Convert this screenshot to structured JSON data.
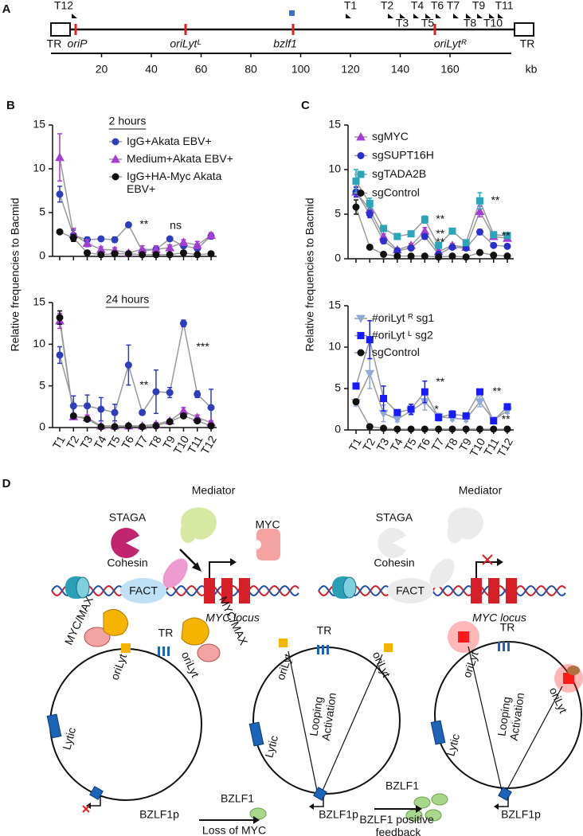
{
  "genome": {
    "panel": "A",
    "targets": [
      "T12",
      "T1",
      "T2",
      "T3",
      "T4",
      "T5",
      "T6",
      "T7",
      "T8",
      "T9",
      "T10",
      "T11"
    ],
    "features": [
      "TR",
      "oriP",
      "oriLytᴸ",
      "bzlf1",
      "oriLytᴿ",
      "TR"
    ],
    "scale_ticks": [
      20,
      40,
      60,
      80,
      100,
      120,
      140,
      160
    ],
    "unit": "kb"
  },
  "chart_data": [
    {
      "type": "line",
      "panel": "B",
      "title": "2 hours",
      "ylabel": "Relative frequencies to Bacmid",
      "categories": [
        null,
        null,
        null,
        null,
        null,
        null,
        null,
        null,
        null,
        null,
        null,
        null
      ],
      "ylim": [
        0,
        15
      ],
      "yticks": [
        0,
        5,
        10,
        15
      ],
      "line_color": "#9a9a9a",
      "annotations": [
        "**",
        "ns"
      ],
      "series": [
        {
          "name": "IgG+Akata EBV+",
          "color": "#2e3dbd",
          "marker": "circle",
          "values": [
            7.1,
            2.4,
            1.9,
            2.0,
            1.9,
            3.6,
            0.6,
            0.8,
            2.0,
            1.2,
            0.9,
            2.3
          ],
          "errors": [
            0.9,
            0.6,
            0.3,
            0.2,
            0.3,
            0.2,
            0.2,
            0.4,
            0.2,
            0.2,
            0.5,
            0.3
          ]
        },
        {
          "name": "Medium+Akata EBV+",
          "color": "#a43cd6",
          "marker": "triangle",
          "values": [
            11.3,
            2.5,
            1.5,
            0.8,
            0.7,
            0.4,
            0.8,
            0.8,
            1.0,
            1.6,
            1.3,
            2.4
          ],
          "errors": [
            2.7,
            0.7,
            0.4,
            0.3,
            0.3,
            0.2,
            0.4,
            0.4,
            0.3,
            0.3,
            0.4,
            0.3
          ]
        },
        {
          "name": "IgG+HA-Myc Akata EBV+",
          "color": "#111111",
          "marker": "circle",
          "values": [
            2.8,
            2.1,
            0.4,
            0.2,
            0.3,
            0.3,
            0.2,
            0.2,
            0.2,
            0.4,
            0.2,
            0.3
          ],
          "errors": [
            0.2,
            0.4,
            0.1,
            0.1,
            0.1,
            0.1,
            0.1,
            0.1,
            0.1,
            0.1,
            0.1,
            0.1
          ]
        }
      ]
    },
    {
      "type": "line",
      "title": "24 hours",
      "categories": [
        "T1",
        "T2",
        "T3",
        "T4",
        "T5",
        "T6",
        "T7",
        "T8",
        "T9",
        "T10",
        "T11",
        "T12"
      ],
      "ylim": [
        0,
        15
      ],
      "yticks": [
        0,
        5,
        10,
        15
      ],
      "line_color": "#9a9a9a",
      "annotations": [
        "**",
        "***"
      ],
      "series": [
        {
          "color": "#2e3dbd",
          "marker": "circle",
          "values": [
            8.7,
            2.6,
            2.6,
            2.2,
            1.8,
            7.5,
            1.8,
            4.3,
            4.2,
            12.5,
            4.0,
            2.4
          ],
          "errors": [
            1.0,
            1.2,
            1.3,
            1.4,
            1.0,
            2.4,
            0.1,
            2.6,
            0.6,
            0.4,
            0.4,
            2.2
          ]
        },
        {
          "color": "#a43cd6",
          "marker": "triangle",
          "values": [
            12.8,
            1.3,
            1.2,
            0.2,
            0.2,
            0.2,
            0.2,
            0.4,
            0.8,
            2.0,
            1.2,
            0.6
          ],
          "errors": [
            0.9,
            0.3,
            0.3,
            0.1,
            0.1,
            0.1,
            0.1,
            0.2,
            0.2,
            0.4,
            0.3,
            0.2
          ]
        },
        {
          "color": "#111111",
          "marker": "circle",
          "values": [
            13.2,
            1.4,
            1.0,
            0.1,
            0.1,
            0.2,
            0.1,
            0.2,
            0.7,
            1.4,
            0.8,
            0.2
          ],
          "errors": [
            0.8,
            0.2,
            0.2,
            0.1,
            0.1,
            0.1,
            0.1,
            0.1,
            0.1,
            0.2,
            0.2,
            0.1
          ]
        }
      ]
    },
    {
      "type": "line",
      "panel": "C",
      "ylabel": "Relative frequencies to Bacmid",
      "categories": [
        null,
        null,
        null,
        null,
        null,
        null,
        null,
        null,
        null,
        null,
        null,
        null
      ],
      "ylim": [
        0,
        15
      ],
      "yticks": [
        0,
        5,
        10,
        15
      ],
      "line_color": "#9a9a9a",
      "annotations": [
        "**",
        "**",
        "**",
        "**",
        "**"
      ],
      "series": [
        {
          "name": "sgMYC",
          "color": "#a43cd6",
          "marker": "triangle",
          "values": [
            7.5,
            5.5,
            2.5,
            1.0,
            1.5,
            3.1,
            0.8,
            1.5,
            1.3,
            5.3,
            2.5,
            2.3
          ],
          "errors": [
            0.6,
            0.5,
            0.3,
            0.2,
            0.2,
            0.4,
            0.2,
            0.2,
            0.2,
            0.6,
            0.3,
            0.2
          ]
        },
        {
          "name": "sgSUPT16H",
          "color": "#2b2fd0",
          "marker": "circle",
          "values": [
            7.5,
            5.0,
            2.0,
            0.9,
            1.2,
            2.5,
            0.5,
            1.3,
            1.2,
            3.0,
            1.5,
            1.4
          ],
          "errors": [
            0.5,
            0.4,
            0.3,
            0.2,
            0.2,
            0.3,
            0.2,
            0.2,
            0.2,
            0.3,
            0.2,
            0.2
          ]
        },
        {
          "name": "sgTADA2B",
          "color": "#2aa6b8",
          "marker": "square",
          "values": [
            8.7,
            6.2,
            3.4,
            2.5,
            2.8,
            4.4,
            1.5,
            3.1,
            1.8,
            6.5,
            2.7,
            2.6
          ],
          "errors": [
            1.3,
            0.6,
            0.3,
            0.2,
            0.2,
            0.4,
            0.2,
            0.2,
            0.2,
            0.9,
            0.2,
            0.2
          ]
        },
        {
          "name": "sgControl",
          "color": "#111111",
          "marker": "circle",
          "values": [
            5.8,
            1.3,
            0.5,
            0.3,
            0.3,
            0.3,
            0.2,
            0.3,
            0.2,
            0.7,
            0.4,
            0.3
          ],
          "errors": [
            0.8,
            0.1,
            0.1,
            0.1,
            0.1,
            0.1,
            0.1,
            0.1,
            0.1,
            0.1,
            0.1,
            0.1
          ]
        }
      ]
    },
    {
      "type": "line",
      "categories": [
        "T1",
        "T2",
        "T3",
        "T4",
        "T5",
        "T6",
        "T7",
        "T8",
        "T9",
        "T10",
        "T11",
        "T12"
      ],
      "ylim": [
        0,
        15
      ],
      "yticks": [
        0,
        5,
        10,
        15
      ],
      "line_color": "#9a9a9a",
      "annotations": [
        "**",
        "*",
        "**",
        "**"
      ],
      "series": [
        {
          "name": "#oriLyt ᴿ sg1",
          "color": "#8fa8d8",
          "marker": "triangle-down",
          "values": [
            3.3,
            6.8,
            2.0,
            1.3,
            2.3,
            3.4,
            1.6,
            1.4,
            1.3,
            3.4,
            1.2,
            2.3
          ],
          "errors": [
            0.4,
            1.8,
            1.0,
            0.3,
            0.5,
            1.0,
            0.4,
            0.3,
            0.3,
            0.6,
            0.2,
            0.3
          ]
        },
        {
          "name": "#oriLyt ᴸ sg2",
          "color": "#1a1aff",
          "marker": "square",
          "values": [
            5.3,
            10.9,
            3.8,
            2.1,
            2.5,
            4.6,
            1.5,
            1.9,
            1.7,
            4.6,
            1.1,
            2.8
          ],
          "errors": [
            0.2,
            2.3,
            1.5,
            0.3,
            0.6,
            1.3,
            0.4,
            0.4,
            0.3,
            0.3,
            0.2,
            0.2
          ]
        },
        {
          "name": "sgControl",
          "color": "#111111",
          "marker": "circle",
          "values": [
            3.4,
            0.4,
            0.2,
            0.1,
            0.1,
            0.1,
            0.1,
            0.1,
            0.1,
            0.1,
            0.1,
            0.1
          ],
          "errors": [
            0.3,
            0.1,
            0.1,
            0.1,
            0.1,
            0.1,
            0.1,
            0.1,
            0.1,
            0.1,
            0.1,
            0.1
          ]
        }
      ]
    }
  ],
  "model": {
    "panel": "D",
    "locus_on": {
      "mediator": "Mediator",
      "staga": "STAGA",
      "myc": "MYC",
      "cohesin": "Cohesin",
      "fact": "FACT",
      "locus": "MYC locus"
    },
    "locus_off": {
      "mediator": "Mediator",
      "staga": "STAGA",
      "cohesin": "Cohesin",
      "fact": "FACT",
      "locus": "MYC locus"
    },
    "episome_latent": {
      "myc_max_left": "MYC/MAX",
      "tr": "TR",
      "orilyt_left": "oriLyt",
      "myc_max_right": "MYC/MAX",
      "orilyt_right": "oriLyt",
      "lytic": "Lytic",
      "promoter": "BZLF1p"
    },
    "episome_no_myc": {
      "tr": "TR",
      "orilyt_left": "oriLyt",
      "looping": "Looping Activation",
      "orilyt_right": "oriLyt",
      "lytic": "Lytic",
      "protein": "BZLF1",
      "promoter": "BZLF1p",
      "step": "Loss of MYC"
    },
    "episome_feedback": {
      "tr": "TR",
      "orilyt_left": "oriLyt",
      "orilyt_right": "oriLyt",
      "looping": "Looping Activation",
      "lytic": "Lytic",
      "protein": "BZLF1",
      "promoter": "BZLF1p",
      "step": "BZLF1 positive feedback"
    }
  }
}
